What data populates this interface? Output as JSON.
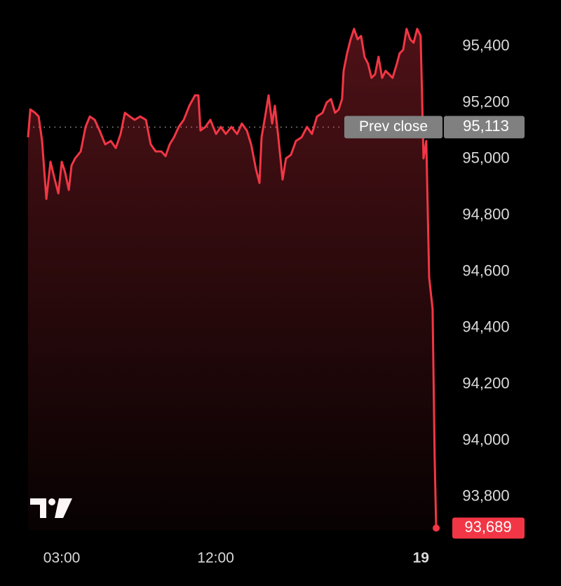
{
  "chart_data": {
    "type": "line",
    "color": "#f23645",
    "x": [
      1.03,
      1.16,
      1.44,
      1.65,
      1.85,
      2.1,
      2.34,
      2.59,
      2.8,
      3.0,
      3.2,
      3.41,
      3.57,
      3.78,
      4.11,
      4.39,
      4.64,
      4.93,
      5.21,
      5.54,
      5.87,
      6.16,
      6.44,
      6.69,
      6.98,
      7.26,
      7.59,
      7.92,
      8.2,
      8.49,
      8.82,
      9.07,
      9.31,
      9.56,
      9.84,
      10.13,
      10.46,
      10.79,
      10.99,
      11.11,
      11.4,
      11.69,
      12.02,
      12.3,
      12.59,
      12.92,
      13.25,
      13.53,
      13.82,
      14.07,
      14.35,
      14.56,
      14.68,
      14.89,
      15.09,
      15.3,
      15.46,
      15.66,
      15.91,
      16.11,
      16.4,
      16.69,
      17.02,
      17.34,
      17.63,
      17.92,
      18.25,
      18.49,
      18.74,
      18.98,
      19.19,
      19.39,
      19.48,
      19.68,
      19.89,
      20.09,
      20.3,
      20.5,
      20.7,
      20.91,
      21.11,
      21.32,
      21.52,
      21.73,
      21.93,
      22.14,
      22.34,
      22.59,
      22.75,
      22.96,
      23.16,
      23.37,
      23.57,
      23.78,
      23.98,
      24.07,
      24.15,
      24.31,
      24.48,
      24.68,
      24.8,
      24.89
    ],
    "values": [
      95077,
      95176,
      95164,
      95151,
      95064,
      94858,
      94990,
      94927,
      94878,
      94990,
      94952,
      94890,
      94977,
      95002,
      95027,
      95114,
      95151,
      95139,
      95101,
      95052,
      95064,
      95039,
      95089,
      95164,
      95151,
      95139,
      95151,
      95139,
      95052,
      95027,
      95027,
      95010,
      95052,
      95077,
      95114,
      95139,
      95189,
      95226,
      95226,
      95101,
      95114,
      95139,
      95089,
      95114,
      95089,
      95114,
      95089,
      95126,
      95101,
      95052,
      94965,
      94915,
      95077,
      95151,
      95226,
      95126,
      95189,
      95077,
      94927,
      95002,
      95015,
      95064,
      95077,
      95114,
      95089,
      95151,
      95164,
      95201,
      95213,
      95164,
      95176,
      95213,
      95313,
      95375,
      95425,
      95462,
      95425,
      95437,
      95363,
      95338,
      95288,
      95301,
      95363,
      95288,
      95313,
      95301,
      95288,
      95338,
      95375,
      95388,
      95462,
      95425,
      95413,
      95462,
      95437,
      95213,
      95002,
      95064,
      94579,
      94467,
      93945,
      93689
    ],
    "xlim": [
      1.03,
      24.89
    ],
    "xticks": [
      {
        "value": 3,
        "label": "03:00"
      },
      {
        "value": 12,
        "label": "12:00"
      },
      {
        "value": 24,
        "label": "19"
      }
    ],
    "ylim": [
      93680,
      95490
    ],
    "yticks": [
      {
        "value": 93800,
        "label": "93,800"
      },
      {
        "value": 94000,
        "label": "94,000"
      },
      {
        "value": 94200,
        "label": "94,200"
      },
      {
        "value": 94400,
        "label": "94,400"
      },
      {
        "value": 94600,
        "label": "94,600"
      },
      {
        "value": 94800,
        "label": "94,800"
      },
      {
        "value": 95000,
        "label": "95,000"
      },
      {
        "value": 95200,
        "label": "95,200"
      },
      {
        "value": 95400,
        "label": "95,400"
      }
    ],
    "prev_close": {
      "name": "Prev close",
      "value": 95113,
      "label": "95,113",
      "color": "#808080"
    },
    "end_label": {
      "value": 93689,
      "label": "93,689"
    }
  }
}
